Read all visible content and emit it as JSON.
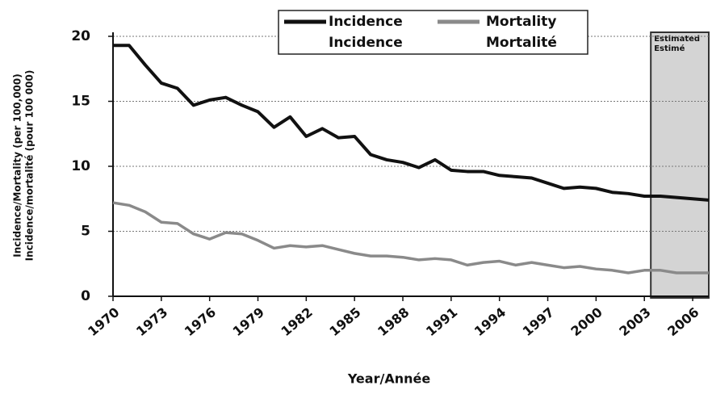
{
  "chart_data": {
    "type": "line",
    "x": [
      1970,
      1971,
      1972,
      1973,
      1974,
      1975,
      1976,
      1977,
      1978,
      1979,
      1980,
      1981,
      1982,
      1983,
      1984,
      1985,
      1986,
      1987,
      1988,
      1989,
      1990,
      1991,
      1992,
      1993,
      1994,
      1995,
      1996,
      1997,
      1998,
      1999,
      2000,
      2001,
      2002,
      2003,
      2004,
      2005,
      2006,
      2007
    ],
    "series": [
      {
        "name": "Incidence",
        "name_alt": "Incidence",
        "color": "#111111",
        "values": [
          19.3,
          19.3,
          17.8,
          16.4,
          16.0,
          14.7,
          15.1,
          15.3,
          14.7,
          14.2,
          13.0,
          13.8,
          12.3,
          12.9,
          12.2,
          12.3,
          10.9,
          10.5,
          10.3,
          9.9,
          10.5,
          9.7,
          9.6,
          9.6,
          9.3,
          9.2,
          9.1,
          8.7,
          8.3,
          8.4,
          8.3,
          8.0,
          7.9,
          7.7,
          7.7,
          7.6,
          7.5,
          7.4
        ]
      },
      {
        "name": "Mortality",
        "name_alt": "Mortalité",
        "color": "#8a8a8a",
        "values": [
          7.2,
          7.0,
          6.5,
          5.7,
          5.6,
          4.8,
          4.4,
          4.9,
          4.8,
          4.3,
          3.7,
          3.9,
          3.8,
          3.9,
          3.6,
          3.3,
          3.1,
          3.1,
          3.0,
          2.8,
          2.9,
          2.8,
          2.4,
          2.6,
          2.7,
          2.4,
          2.6,
          2.4,
          2.2,
          2.3,
          2.1,
          2.0,
          1.8,
          2.0,
          2.0,
          1.8,
          1.8,
          1.8
        ]
      }
    ],
    "xlim": [
      1970,
      2007
    ],
    "xticks": [
      1970,
      1973,
      1976,
      1979,
      1982,
      1985,
      1988,
      1991,
      1994,
      1997,
      2000,
      2003,
      2006
    ],
    "ylim": [
      0,
      20
    ],
    "yticks": [
      0,
      5,
      10,
      15,
      20
    ],
    "grid": true,
    "x_label": "Year/Année",
    "y_label": [
      "Incidence/Mortality (per 100,000)",
      "Incidence/mortalité (pour 100 000)"
    ],
    "shaded_region": {
      "start": 2003.4,
      "label": [
        "Estimated",
        "Estimé"
      ]
    }
  }
}
